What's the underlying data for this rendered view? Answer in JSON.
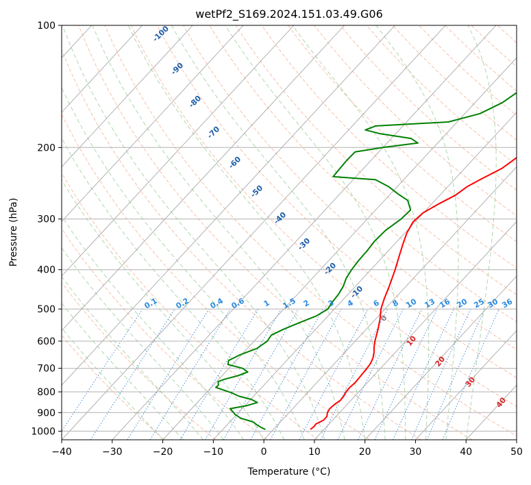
{
  "chart_data": {
    "type": "line",
    "title": "wetPf2_S169.2024.151.03.49.G06",
    "xlabel": "Temperature (°C)",
    "ylabel": "Pressure (hPa)",
    "xlim": [
      -40,
      50
    ],
    "ylim": [
      1050,
      100
    ],
    "y_scale": "log",
    "grid": true,
    "x_ticks": [
      -40,
      -30,
      -20,
      -10,
      0,
      10,
      20,
      30,
      40,
      50
    ],
    "y_ticks": [
      1000,
      900,
      800,
      700,
      600,
      500,
      400,
      300,
      200,
      100
    ],
    "background_lines": {
      "isotherm_labels": [
        -100,
        -90,
        -80,
        -70,
        -60,
        -50,
        -40,
        -30,
        -20,
        -10
      ],
      "mixing_ratio_labels": [
        "0.1",
        "0.2",
        "0.4",
        "0.6",
        "1",
        "1.5",
        "2",
        "3",
        "4",
        "6",
        "8",
        "10",
        "13",
        "16",
        "20",
        "25",
        "30",
        "36"
      ],
      "moist_adiabat_labels": [
        "0",
        "10",
        "20",
        "30",
        "40"
      ],
      "colors": {
        "isotherm": "#999999",
        "dry_adiabat": "#f4a582",
        "moist_adiabat": "#92c98f",
        "mixing_ratio": "#1f77d4",
        "isotherm_label": "#1f5fa8",
        "mixing_ratio_label": "#2a8ae0",
        "moist_label": "#d62728"
      }
    },
    "series": [
      {
        "role": "temperature",
        "color": "#ff0000",
        "points": [
          {
            "p": 990,
            "t": 7.3
          },
          {
            "p": 975,
            "t": 7.5
          },
          {
            "p": 960,
            "t": 7.4
          },
          {
            "p": 940,
            "t": 8.2
          },
          {
            "p": 920,
            "t": 8.2
          },
          {
            "p": 900,
            "t": 7.6
          },
          {
            "p": 880,
            "t": 7.3
          },
          {
            "p": 860,
            "t": 7.5
          },
          {
            "p": 840,
            "t": 7.9
          },
          {
            "p": 820,
            "t": 7.8
          },
          {
            "p": 800,
            "t": 7.5
          },
          {
            "p": 780,
            "t": 7.4
          },
          {
            "p": 760,
            "t": 7.6
          },
          {
            "p": 740,
            "t": 7.5
          },
          {
            "p": 720,
            "t": 7.4
          },
          {
            "p": 700,
            "t": 7.3
          },
          {
            "p": 680,
            "t": 7.1
          },
          {
            "p": 660,
            "t": 6.6
          },
          {
            "p": 640,
            "t": 5.8
          },
          {
            "p": 620,
            "t": 4.8
          },
          {
            "p": 600,
            "t": 3.9
          },
          {
            "p": 560,
            "t": 2.3
          },
          {
            "p": 530,
            "t": 0.9
          },
          {
            "p": 500,
            "t": -0.8
          },
          {
            "p": 470,
            "t": -2.1
          },
          {
            "p": 440,
            "t": -3.3
          },
          {
            "p": 400,
            "t": -5.2
          },
          {
            "p": 370,
            "t": -6.9
          },
          {
            "p": 345,
            "t": -8.4
          },
          {
            "p": 325,
            "t": -9.6
          },
          {
            "p": 305,
            "t": -10.4
          },
          {
            "p": 290,
            "t": -10.1
          },
          {
            "p": 275,
            "t": -8.6
          },
          {
            "p": 262,
            "t": -6.9
          },
          {
            "p": 250,
            "t": -6.2
          },
          {
            "p": 240,
            "t": -4.9
          },
          {
            "p": 225,
            "t": -2.6
          },
          {
            "p": 212,
            "t": -1.7
          },
          {
            "p": 200,
            "t": -1.0
          },
          {
            "p": 190,
            "t": -0.1
          },
          {
            "p": 180,
            "t": 1.4
          },
          {
            "p": 170,
            "t": 2.6
          },
          {
            "p": 160,
            "t": 4.4
          },
          {
            "p": 150,
            "t": 5.2
          },
          {
            "p": 140,
            "t": 6.0
          },
          {
            "p": 130,
            "t": 6.3
          },
          {
            "p": 120,
            "t": 8.1
          },
          {
            "p": 110,
            "t": 9.4
          },
          {
            "p": 100,
            "t": 10.9
          }
        ]
      },
      {
        "role": "dewpoint",
        "color": "#008000",
        "points": [
          {
            "p": 990,
            "t": -1.6
          },
          {
            "p": 980,
            "t": -2.7
          },
          {
            "p": 965,
            "t": -4.1
          },
          {
            "p": 950,
            "t": -5.3
          },
          {
            "p": 940,
            "t": -6.8
          },
          {
            "p": 930,
            "t": -8.4
          },
          {
            "p": 910,
            "t": -10.3
          },
          {
            "p": 895,
            "t": -11.3
          },
          {
            "p": 880,
            "t": -12.4
          },
          {
            "p": 865,
            "t": -9.6
          },
          {
            "p": 850,
            "t": -8.1
          },
          {
            "p": 835,
            "t": -9.9
          },
          {
            "p": 820,
            "t": -12.9
          },
          {
            "p": 805,
            "t": -14.9
          },
          {
            "p": 790,
            "t": -17.4
          },
          {
            "p": 780,
            "t": -19.1
          },
          {
            "p": 770,
            "t": -19.0
          },
          {
            "p": 755,
            "t": -19.7
          },
          {
            "p": 745,
            "t": -18.9
          },
          {
            "p": 730,
            "t": -16.9
          },
          {
            "p": 715,
            "t": -15.6
          },
          {
            "p": 700,
            "t": -17.3
          },
          {
            "p": 685,
            "t": -20.9
          },
          {
            "p": 670,
            "t": -21.5
          },
          {
            "p": 650,
            "t": -20.4
          },
          {
            "p": 625,
            "t": -18.1
          },
          {
            "p": 600,
            "t": -17.4
          },
          {
            "p": 580,
            "t": -17.7
          },
          {
            "p": 560,
            "t": -16.3
          },
          {
            "p": 540,
            "t": -14.4
          },
          {
            "p": 520,
            "t": -12.3
          },
          {
            "p": 500,
            "t": -11.3
          },
          {
            "p": 480,
            "t": -11.7
          },
          {
            "p": 460,
            "t": -11.9
          },
          {
            "p": 440,
            "t": -12.4
          },
          {
            "p": 420,
            "t": -13.3
          },
          {
            "p": 400,
            "t": -13.8
          },
          {
            "p": 380,
            "t": -14.1
          },
          {
            "p": 360,
            "t": -14.2
          },
          {
            "p": 340,
            "t": -14.5
          },
          {
            "p": 320,
            "t": -14.3
          },
          {
            "p": 300,
            "t": -13.3
          },
          {
            "p": 285,
            "t": -13.1
          },
          {
            "p": 270,
            "t": -15.4
          },
          {
            "p": 260,
            "t": -18.6
          },
          {
            "p": 250,
            "t": -21.6
          },
          {
            "p": 240,
            "t": -25.6
          },
          {
            "p": 236,
            "t": -34.5
          },
          {
            "p": 230,
            "t": -34.6
          },
          {
            "p": 215,
            "t": -34.8
          },
          {
            "p": 205,
            "t": -34.7
          },
          {
            "p": 200,
            "t": -30.0
          },
          {
            "p": 195,
            "t": -23.9
          },
          {
            "p": 190,
            "t": -26.1
          },
          {
            "p": 185,
            "t": -33.0
          },
          {
            "p": 181,
            "t": -36.7
          },
          {
            "p": 177,
            "t": -35.4
          },
          {
            "p": 173,
            "t": -21.7
          },
          {
            "p": 165,
            "t": -17.0
          },
          {
            "p": 155,
            "t": -14.6
          },
          {
            "p": 145,
            "t": -13.4
          },
          {
            "p": 135,
            "t": -11.6
          },
          {
            "p": 125,
            "t": -9.1
          },
          {
            "p": 115,
            "t": -6.5
          },
          {
            "p": 108,
            "t": -4.5
          },
          {
            "p": 100,
            "t": -2.6
          }
        ]
      }
    ]
  }
}
